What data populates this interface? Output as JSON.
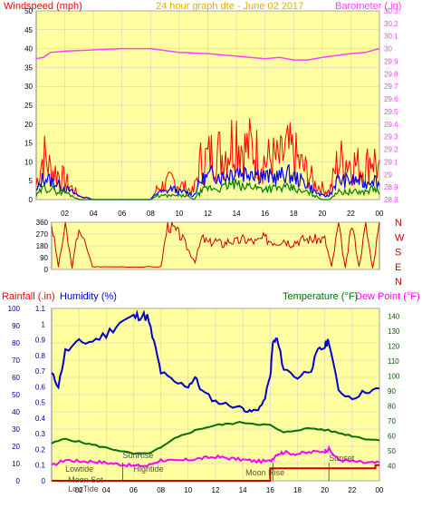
{
  "colors": {
    "background": "#ffffff",
    "plot_bg": "#ffffa0",
    "wind": "#ff0000",
    "gust_band": "#0000ff",
    "wind_avg": "#008000",
    "barometer": "#ff40ff",
    "direction": "#cc0000",
    "humidity": "#0000cc",
    "temperature": "#007000",
    "dew_point": "#ff00ff",
    "rainfall": "#cc0000",
    "title": "#e0b000",
    "grid": "#c8c8c8"
  },
  "chart_data": [
    {
      "type": "line",
      "title": "24 hour graph dte - June 02 2017",
      "left_axis_label": "Windspeed (mph)",
      "right_axis_label": "Barometer (.in)",
      "x_ticks": [
        "02",
        "04",
        "06",
        "08",
        "10",
        "12",
        "14",
        "16",
        "18",
        "20",
        "22",
        "00"
      ],
      "x_range": [
        0,
        24
      ],
      "left_ticks": [
        "0",
        "5",
        "10",
        "15",
        "20",
        "25",
        "30",
        "35",
        "40",
        "45",
        "50"
      ],
      "left_range": [
        0,
        50
      ],
      "right_ticks": [
        "28.8",
        "28.9",
        "29",
        "29.1",
        "29.2",
        "29.3",
        "29.4",
        "29.5",
        "29.6",
        "29.7",
        "29.8",
        "29.9",
        "30",
        "30.1",
        "30.2",
        "30.3"
      ],
      "right_range": [
        28.8,
        30.3
      ],
      "grid": true,
      "series": [
        {
          "name": "Barometer",
          "axis": "right",
          "x": [
            0,
            0.5,
            1,
            2,
            4,
            6,
            8,
            10,
            12,
            14,
            16,
            17,
            18,
            19,
            20,
            22,
            23,
            24
          ],
          "y": [
            29.92,
            29.93,
            29.97,
            29.98,
            29.99,
            30.0,
            30.0,
            29.97,
            29.96,
            29.94,
            29.92,
            29.93,
            29.91,
            29.91,
            29.93,
            29.96,
            29.97,
            30.0
          ]
        },
        {
          "name": "Wind gust",
          "axis": "left",
          "x": [
            0,
            0.5,
            1,
            1.5,
            2,
            2.5,
            3,
            4,
            6,
            7,
            8,
            8.5,
            9,
            9.5,
            10,
            10.5,
            11,
            11.5,
            12,
            12.5,
            13,
            13.5,
            14,
            14.5,
            15,
            15.5,
            16,
            16.5,
            17,
            17.5,
            18,
            18.5,
            19,
            19.5,
            20,
            20.5,
            21,
            21.5,
            22,
            22.5,
            23,
            23.5,
            24
          ],
          "y": [
            4,
            12,
            8,
            7,
            5,
            3,
            1,
            0,
            0,
            0,
            0,
            3,
            4,
            5,
            4,
            3,
            2,
            10,
            11,
            13,
            12,
            14,
            18,
            13,
            14,
            12,
            10,
            11,
            10,
            13,
            12,
            9,
            7,
            4,
            3,
            2,
            9,
            11,
            10,
            9,
            8,
            12,
            7
          ]
        },
        {
          "name": "Wind speed",
          "axis": "left",
          "x": [
            0,
            0.5,
            1,
            1.5,
            2,
            2.5,
            3,
            4,
            6,
            7,
            8,
            8.5,
            9,
            9.5,
            10,
            10.5,
            11,
            11.5,
            12,
            12.5,
            13,
            13.5,
            14,
            14.5,
            15,
            15.5,
            16,
            16.5,
            17,
            17.5,
            18,
            18.5,
            19,
            19.5,
            20,
            20.5,
            21,
            21.5,
            22,
            22.5,
            23,
            23.5,
            24
          ],
          "y": [
            2,
            6,
            5,
            4,
            3,
            2,
            1,
            0,
            0,
            0,
            0,
            2,
            2,
            3,
            2,
            2,
            1,
            5,
            6,
            7,
            6,
            7,
            8,
            7,
            8,
            7,
            6,
            6,
            6,
            7,
            6,
            5,
            4,
            2,
            1,
            1,
            5,
            5,
            5,
            5,
            4,
            6,
            4
          ]
        },
        {
          "name": "Wind average",
          "axis": "left",
          "x": [
            0,
            0.5,
            1,
            1.5,
            2,
            2.5,
            3,
            4,
            6,
            7,
            8,
            8.5,
            9,
            9.5,
            10,
            10.5,
            11,
            11.5,
            12,
            12.5,
            13,
            13.5,
            14,
            14.5,
            15,
            15.5,
            16,
            16.5,
            17,
            17.5,
            18,
            18.5,
            19,
            19.5,
            20,
            20.5,
            21,
            21.5,
            22,
            22.5,
            23,
            23.5,
            24
          ],
          "y": [
            1,
            3,
            3,
            2,
            2,
            1,
            0,
            0,
            0,
            0,
            0,
            1,
            1,
            1,
            1,
            1,
            0,
            2,
            3,
            3,
            3,
            4,
            4,
            3,
            4,
            3,
            3,
            3,
            3,
            3,
            3,
            2,
            2,
            1,
            0,
            0,
            2,
            2,
            2,
            2,
            2,
            3,
            2
          ]
        }
      ]
    },
    {
      "type": "scatter",
      "left_ticks": [
        "0",
        "90",
        "180",
        "270",
        "360"
      ],
      "left_range": [
        0,
        360
      ],
      "right_labels": [
        "N",
        "W",
        "S",
        "E",
        "N"
      ],
      "x_range": [
        0,
        24
      ],
      "series": [
        {
          "name": "Wind direction",
          "x": [
            0,
            0.5,
            1,
            1.5,
            2,
            3,
            4,
            6,
            7,
            8,
            8.5,
            9,
            9.5,
            10,
            10.5,
            11,
            11.5,
            12,
            12.5,
            13,
            13.5,
            14,
            14.5,
            15,
            15.5,
            16,
            16.5,
            17,
            17.5,
            18,
            18.5,
            19,
            19.5,
            20,
            20.5,
            21,
            21.5,
            22,
            22.5,
            23,
            23.5,
            24
          ],
          "y": [
            350,
            20,
            340,
            10,
            330,
            20,
            20,
            20,
            20,
            20,
            350,
            300,
            250,
            150,
            60,
            240,
            200,
            220,
            190,
            220,
            210,
            230,
            220,
            210,
            240,
            220,
            210,
            230,
            200,
            220,
            230,
            230,
            230,
            230,
            20,
            340,
            10,
            350,
            20,
            340,
            10,
            350
          ]
        }
      ]
    },
    {
      "type": "line",
      "left_axis_label": "Rainfall (.in)",
      "left2_axis_label": "Humidity (%)",
      "right_axis_label": "Temperature (°F)",
      "right2_axis_label": "Dew Point (°F)",
      "x_ticks": [
        "02",
        "04",
        "06",
        "08",
        "10",
        "12",
        "14",
        "16",
        "18",
        "20",
        "22",
        "00"
      ],
      "x_range": [
        0,
        24
      ],
      "humidity_ticks": [
        "0",
        "10",
        "20",
        "30",
        "40",
        "50",
        "60",
        "70",
        "80",
        "90",
        "100"
      ],
      "humidity_range": [
        0,
        100
      ],
      "rain_ticks": [
        "0",
        "0.1",
        "0.2",
        "0.3",
        "0.4",
        "0.5",
        "0.6",
        "0.7",
        "0.8",
        "0.9",
        "1",
        "1.1"
      ],
      "rain_range": [
        0,
        1.1
      ],
      "temp_ticks": [
        "40",
        "50",
        "60",
        "70",
        "80",
        "90",
        "100",
        "110",
        "120",
        "130",
        "140"
      ],
      "temp_range": [
        30,
        145
      ],
      "grid": true,
      "annotations": [
        {
          "text": "Lowtide",
          "x": 1.0
        },
        {
          "text": "SunRise",
          "x": 5.2
        },
        {
          "text": "Hightide",
          "x": 6.0
        },
        {
          "text": "Moon Set",
          "x": 1.2
        },
        {
          "text": "LowTide",
          "x": 1.2
        },
        {
          "text": "Moon Rise",
          "x": 14.2
        },
        {
          "text": "Sunset",
          "x": 20.3
        }
      ],
      "series": [
        {
          "name": "Humidity",
          "axis": "humidity",
          "x": [
            0,
            0.5,
            1,
            2,
            3,
            4,
            5,
            6,
            6.5,
            7,
            7.5,
            8,
            9,
            10,
            10.5,
            11,
            12,
            13,
            14,
            14.5,
            15,
            15.5,
            16,
            16.2,
            16.5,
            17,
            18,
            19,
            19.5,
            20,
            20.3,
            21,
            22,
            23,
            24
          ],
          "y": [
            62,
            55,
            75,
            80,
            81,
            85,
            92,
            95,
            96,
            95,
            80,
            63,
            57,
            55,
            60,
            52,
            46,
            44,
            42,
            40,
            41,
            45,
            60,
            80,
            82,
            65,
            60,
            65,
            75,
            78,
            82,
            52,
            48,
            52,
            53
          ]
        },
        {
          "name": "Temperature",
          "axis": "temp",
          "x": [
            0,
            1,
            2,
            3,
            4,
            5,
            6,
            7,
            8,
            9,
            10,
            11,
            12,
            13,
            14,
            15,
            16,
            17,
            18,
            19,
            20,
            21,
            22,
            23,
            24
          ],
          "y": [
            55,
            58,
            56,
            54,
            52,
            50,
            48,
            48,
            52,
            58,
            62,
            65,
            67,
            68,
            69,
            68,
            67,
            62,
            64,
            65,
            64,
            62,
            60,
            58,
            57
          ]
        },
        {
          "name": "Dew Point",
          "axis": "temp",
          "x": [
            0,
            1,
            2,
            3,
            4,
            5,
            6,
            7,
            8,
            9,
            10,
            11,
            12,
            13,
            14,
            15,
            16,
            16.5,
            17,
            18,
            19,
            20,
            20.3,
            21,
            22,
            23,
            24
          ],
          "y": [
            40,
            44,
            43,
            43,
            42,
            41,
            40,
            40,
            44,
            43,
            44,
            45,
            46,
            45,
            44,
            43,
            43,
            48,
            49,
            48,
            49,
            50,
            51,
            44,
            43,
            42,
            42
          ]
        },
        {
          "name": "Rainfall",
          "axis": "rain",
          "x": [
            0,
            16,
            16.01,
            23.7,
            23.71,
            24
          ],
          "y": [
            0,
            0,
            0.08,
            0.08,
            0.1,
            0.1
          ]
        }
      ]
    }
  ]
}
